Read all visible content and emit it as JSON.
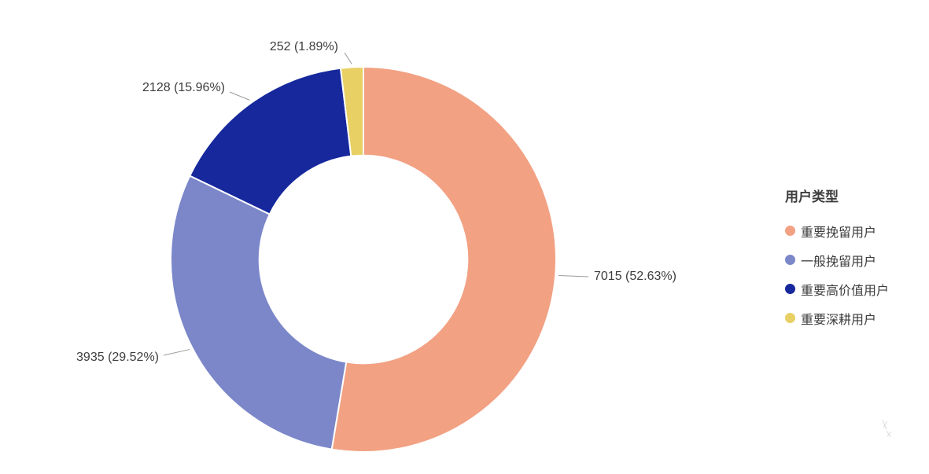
{
  "legend": {
    "title": "用户类型",
    "items": [
      {
        "label": "重要挽留用户",
        "color": "#F2A183"
      },
      {
        "label": "一般挽留用户",
        "color": "#7B87C9"
      },
      {
        "label": "重要高价值用户",
        "color": "#16289C"
      },
      {
        "label": "重要深耕用户",
        "color": "#E8D064"
      }
    ]
  },
  "chart_data": {
    "type": "pie",
    "subtype": "donut",
    "title": "",
    "legend_title": "用户类型",
    "legend_position": "right",
    "categories": [
      "重要挽留用户",
      "一般挽留用户",
      "重要高价值用户",
      "重要深耕用户"
    ],
    "values": [
      7015,
      3935,
      2128,
      252
    ],
    "percentages": [
      52.63,
      29.52,
      15.96,
      1.89
    ],
    "labels": [
      "7015 (52.63%)",
      "3935 (29.52%)",
      "2128 (15.96%)",
      "252 (1.89%)"
    ],
    "colors": [
      "#F2A183",
      "#7B87C9",
      "#16289C",
      "#E8D064"
    ],
    "start_angle_deg": -90,
    "direction": "clockwise",
    "inner_radius_ratio": 0.54,
    "label_color": "#3d3d3d",
    "leader_line_color": "#9a9a9a"
  }
}
